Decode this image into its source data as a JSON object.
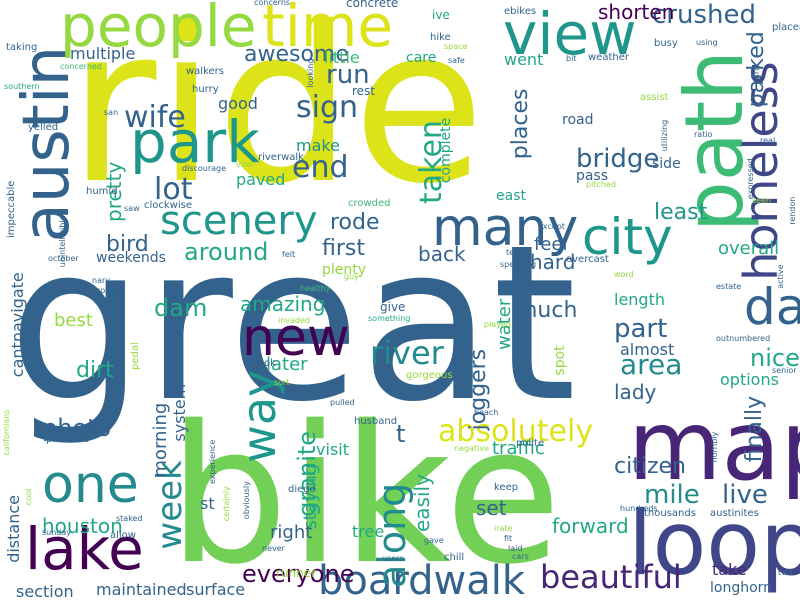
{
  "palette": {
    "background": "#ffffff",
    "yellow": "#dce319",
    "light_green": "#95d840",
    "green": "#73d056",
    "mid_green": "#3cbb75",
    "teal_green": "#22a884",
    "teal": "#1f968b",
    "teal_blue": "#238a8d",
    "blue": "#2d708e",
    "slate_blue": "#33638d",
    "indigo": "#404788",
    "deep_indigo": "#482677",
    "purple": "#440154"
  },
  "words": [
    {
      "text": "ride"
    },
    {
      "text": "great"
    },
    {
      "text": "bike"
    },
    {
      "text": "map"
    },
    {
      "text": "loop"
    },
    {
      "text": "path"
    },
    {
      "text": "austin"
    },
    {
      "text": "people"
    },
    {
      "text": "time"
    },
    {
      "text": "view"
    },
    {
      "text": "park"
    },
    {
      "text": "lake"
    },
    {
      "text": "one"
    },
    {
      "text": "new"
    },
    {
      "text": "many"
    },
    {
      "text": "city"
    },
    {
      "text": "day"
    },
    {
      "text": "homeless"
    },
    {
      "text": "scenery"
    },
    {
      "text": "way"
    },
    {
      "text": "boardwalk"
    },
    {
      "text": "beautiful"
    },
    {
      "text": "river"
    },
    {
      "text": "absolutely"
    },
    {
      "text": "week"
    },
    {
      "text": "mile"
    },
    {
      "text": "area"
    },
    {
      "text": "along"
    },
    {
      "text": "crushed"
    },
    {
      "text": "bridge"
    },
    {
      "text": "sign"
    },
    {
      "text": "wife"
    },
    {
      "text": "lot"
    },
    {
      "text": "end"
    },
    {
      "text": "run"
    },
    {
      "text": "photo"
    },
    {
      "text": "live"
    },
    {
      "text": "part"
    },
    {
      "text": "nice"
    },
    {
      "text": "dam"
    },
    {
      "text": "around"
    },
    {
      "text": "granite"
    },
    {
      "text": "everyone"
    },
    {
      "text": "awesome"
    },
    {
      "text": "taken"
    },
    {
      "text": "places"
    },
    {
      "text": "parked"
    },
    {
      "text": "shorten"
    },
    {
      "text": "finally"
    },
    {
      "text": "rode"
    },
    {
      "text": "first"
    },
    {
      "text": "back"
    },
    {
      "text": "much"
    },
    {
      "text": "joggers"
    },
    {
      "text": "citizen"
    },
    {
      "text": "bird"
    },
    {
      "text": "amazing"
    },
    {
      "text": "dirt"
    },
    {
      "text": "easily"
    },
    {
      "text": "forward"
    },
    {
      "text": "houston"
    },
    {
      "text": "multiple"
    },
    {
      "text": "little"
    },
    {
      "text": "went"
    },
    {
      "text": "pretty"
    },
    {
      "text": "good"
    },
    {
      "text": "make"
    },
    {
      "text": "least"
    },
    {
      "text": "feel"
    },
    {
      "text": "hard"
    },
    {
      "text": "t"
    },
    {
      "text": "lady"
    },
    {
      "text": "almost"
    },
    {
      "text": "options"
    },
    {
      "text": "overall"
    },
    {
      "text": "length"
    },
    {
      "text": "water"
    },
    {
      "text": "later"
    },
    {
      "text": "morning"
    },
    {
      "text": "best"
    },
    {
      "text": "cantnavigate"
    },
    {
      "text": "system"
    },
    {
      "text": "staying"
    },
    {
      "text": "visit"
    },
    {
      "text": "traffic"
    },
    {
      "text": "set"
    },
    {
      "text": "right"
    },
    {
      "text": "tree"
    },
    {
      "text": "take"
    },
    {
      "text": "distance"
    },
    {
      "text": "section"
    },
    {
      "text": "maintained"
    },
    {
      "text": "surface"
    },
    {
      "text": "longhorn"
    },
    {
      "text": "plenty"
    },
    {
      "text": "weekends"
    },
    {
      "text": "paved"
    },
    {
      "text": "pass"
    },
    {
      "text": "complete"
    },
    {
      "text": "road"
    },
    {
      "text": "east"
    },
    {
      "text": "side"
    },
    {
      "text": "concrete"
    },
    {
      "text": "care"
    },
    {
      "text": "rest"
    },
    {
      "text": "spot"
    },
    {
      "text": "give"
    },
    {
      "text": "ive"
    },
    {
      "text": "ebikes"
    },
    {
      "text": "hike"
    },
    {
      "text": "taking"
    },
    {
      "text": "concerned"
    },
    {
      "text": "southern"
    },
    {
      "text": "walkers"
    },
    {
      "text": "hurry"
    },
    {
      "text": "yelled"
    },
    {
      "text": "san"
    },
    {
      "text": "impeccable"
    },
    {
      "text": "unintelligible"
    },
    {
      "text": "humid"
    },
    {
      "text": "saw"
    },
    {
      "text": "clockwise"
    },
    {
      "text": "discourage"
    },
    {
      "text": "riverwalk"
    },
    {
      "text": "vibe"
    },
    {
      "text": "crowded"
    },
    {
      "text": "october"
    },
    {
      "text": "nary"
    },
    {
      "text": "couple"
    },
    {
      "text": "healthy"
    },
    {
      "text": "invaded"
    },
    {
      "text": "felt"
    },
    {
      "text": "guy"
    },
    {
      "text": "tents"
    },
    {
      "text": "overcast"
    },
    {
      "text": "word"
    },
    {
      "text": "estate"
    },
    {
      "text": "active"
    },
    {
      "text": "except"
    },
    {
      "text": "something"
    },
    {
      "text": "played"
    },
    {
      "text": "speaking"
    },
    {
      "text": "outnumbered"
    },
    {
      "text": "senior"
    },
    {
      "text": "real"
    },
    {
      "text": "expressed"
    },
    {
      "text": "seen"
    },
    {
      "text": "rendon"
    },
    {
      "text": "pedal"
    },
    {
      "text": "took"
    },
    {
      "text": "sort"
    },
    {
      "text": "gorgeous"
    },
    {
      "text": "pulled"
    },
    {
      "text": "husband"
    },
    {
      "text": "beach"
    },
    {
      "text": "negative"
    },
    {
      "text": "polite"
    },
    {
      "text": "horribly"
    },
    {
      "text": "pleasure"
    },
    {
      "text": "californians"
    },
    {
      "text": "cool"
    },
    {
      "text": "sunday"
    },
    {
      "text": "allow"
    },
    {
      "text": "staked"
    },
    {
      "text": "experience"
    },
    {
      "text": "st"
    },
    {
      "text": "diego"
    },
    {
      "text": "certainly"
    },
    {
      "text": "obviously"
    },
    {
      "text": "never"
    },
    {
      "text": "runner"
    },
    {
      "text": "users"
    },
    {
      "text": "gave"
    },
    {
      "text": "chill"
    },
    {
      "text": "irate"
    },
    {
      "text": "keep"
    },
    {
      "text": "fit"
    },
    {
      "text": "laid"
    },
    {
      "text": "cars"
    },
    {
      "text": "hundreds"
    },
    {
      "text": "thousands"
    },
    {
      "text": "austinites"
    },
    {
      "text": "two"
    },
    {
      "text": "pitched"
    },
    {
      "text": "ratio"
    },
    {
      "text": "utilizing"
    },
    {
      "text": "assist"
    },
    {
      "text": "early"
    },
    {
      "text": "placemy"
    },
    {
      "text": "busy"
    },
    {
      "text": "using"
    },
    {
      "text": "bit"
    },
    {
      "text": "weather"
    },
    {
      "text": "looking"
    },
    {
      "text": "concerns"
    },
    {
      "text": "space"
    },
    {
      "text": "safe"
    }
  ]
}
